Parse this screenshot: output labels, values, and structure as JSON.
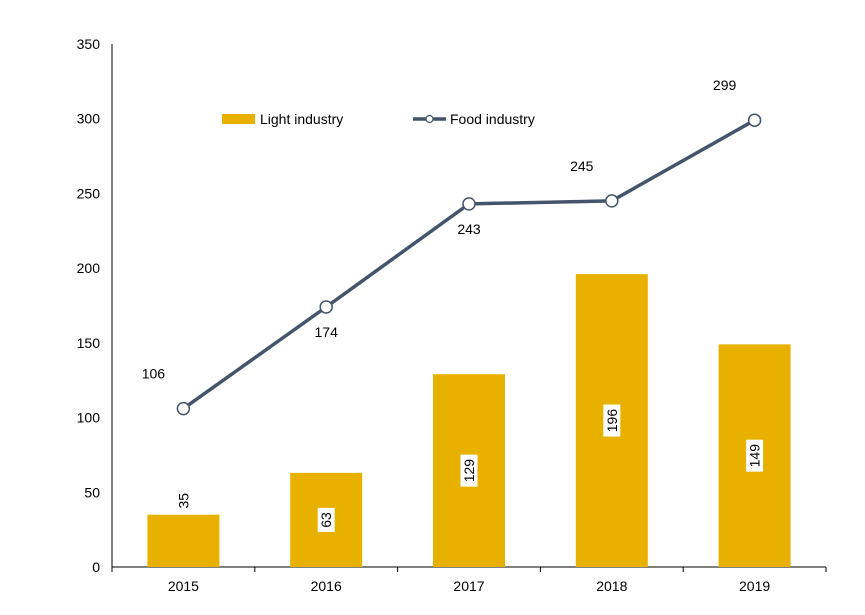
{
  "chart_data": {
    "type": "bar+line",
    "categories": [
      "2015",
      "2016",
      "2017",
      "2018",
      "2019"
    ],
    "ylim": [
      0,
      350
    ],
    "yticks": [
      0,
      50,
      100,
      150,
      200,
      250,
      300,
      350
    ],
    "title": "",
    "xlabel": "",
    "ylabel": "",
    "legend_position": "top-center",
    "grid": false,
    "series": [
      {
        "name": "Light industry",
        "kind": "bar",
        "color": "#E8B100",
        "values": [
          35,
          63,
          129,
          196,
          149
        ],
        "labels": [
          "35",
          "63",
          "129",
          "196",
          "149"
        ]
      },
      {
        "name": "Food industry",
        "kind": "line",
        "color": "#44546A",
        "values": [
          106,
          174,
          243,
          245,
          299
        ],
        "labels": [
          "106",
          "174",
          "243",
          "245",
          "299"
        ]
      }
    ]
  }
}
